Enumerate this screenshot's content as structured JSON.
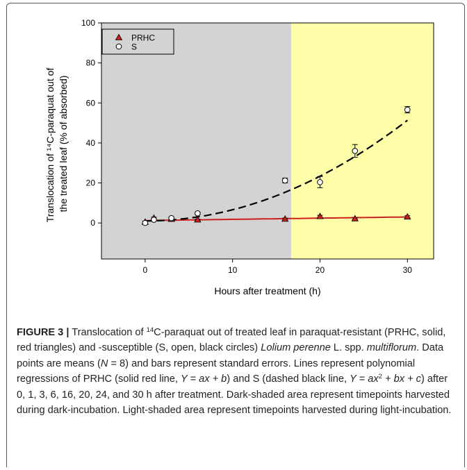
{
  "chart_data": {
    "type": "scatter",
    "xlabel": "Hours after treatment (h)",
    "ylabel_line1": "Translocation of ¹⁴C-paraquat out of",
    "ylabel_line2": "the treated leaf (% of absorbed)",
    "xlim": [
      -5,
      33
    ],
    "ylim": [
      -18,
      100
    ],
    "xticks": [
      0,
      10,
      20,
      30
    ],
    "yticks": [
      0,
      20,
      40,
      60,
      80,
      100
    ],
    "grid": false,
    "legend_position": "top-left",
    "shaded_regions": [
      {
        "label": "dark-incubation",
        "from": -5,
        "to": 16.7,
        "color": "#d3d3d3"
      },
      {
        "label": "light-incubation",
        "from": 16.7,
        "to": 33,
        "color": "#ffffaa"
      }
    ],
    "series": [
      {
        "name": "PRHC",
        "marker": "triangle",
        "marker_color": "#cc1f1f",
        "x": [
          0,
          1,
          3,
          6,
          16,
          20,
          24,
          30
        ],
        "y": [
          0.5,
          2.5,
          1.9,
          1.6,
          2.0,
          3.3,
          2.2,
          3.1
        ],
        "err": [
          0.4,
          0.4,
          0.3,
          0.3,
          0.4,
          0.5,
          0.4,
          0.5
        ],
        "fit": {
          "type": "linear",
          "a": 0.06,
          "b": 1.2,
          "style": "solid",
          "color": "#cc1f1f"
        }
      },
      {
        "name": "S",
        "marker": "circle-open",
        "marker_color": "#000000",
        "x": [
          0,
          1,
          3,
          6,
          16,
          20,
          24,
          30
        ],
        "y": [
          0,
          1.6,
          2.4,
          4.8,
          21.2,
          20.4,
          36.0,
          56.6
        ],
        "err": [
          0.3,
          0.4,
          0.5,
          0.6,
          1.2,
          2.8,
          3.2,
          1.6
        ],
        "fit": {
          "type": "quadratic",
          "a": 0.0559,
          "b": 0.0,
          "c": 1.0,
          "style": "dashed",
          "color": "#000000"
        }
      }
    ]
  },
  "caption": {
    "label": "FIGURE 3 |",
    "p1": " Translocation of ",
    "sup14a": "14",
    "p2": "C-paraquat out of treated leaf in paraquat-resistant (PRHC, solid, red triangles) and -susceptible (S, open, black circles) ",
    "species": "Lolium perenne",
    "p3": " L. spp. ",
    "subsp": "multiflorum",
    "p4": ". Data points are means (",
    "n_var": "N",
    "p5": " = 8) and bars represent standard errors. Lines represent polynomial regressions of PRHC (solid red line, ",
    "eq1": "Y = ax + b",
    "p6": ") and S (dashed black line, ",
    "eq2a": "Y = ax",
    "eq2sup": "2",
    "eq2b": " + bx + c",
    "p7": ") after 0, 1, 3, 6, 16, 20, 24, and 30 h after treatment. Dark-shaded area represent timepoints harvested during dark-incubation. Light-shaded area represent timepoints harvested during light-incubation."
  }
}
